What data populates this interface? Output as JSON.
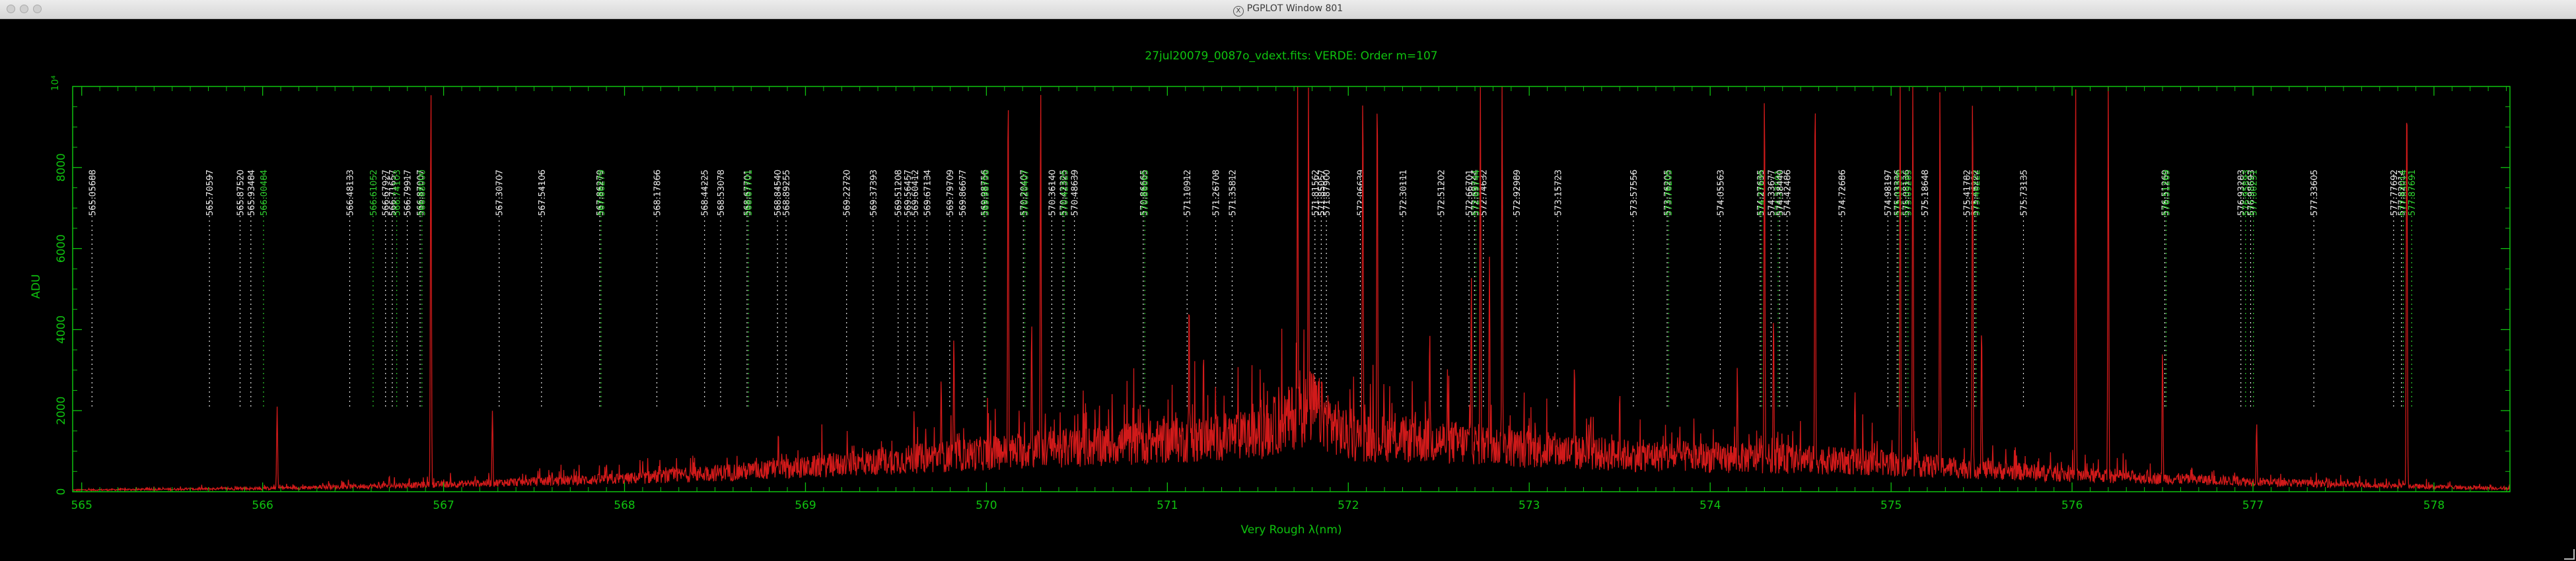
{
  "window": {
    "title": "PGPLOT Window 801",
    "title_icon": "x11-icon"
  },
  "chart_data": {
    "type": "line",
    "title": "27jul20079_0087o_vdext.fits: VERDE: Order m=107",
    "xlabel": "Very Rough λ(nm)",
    "ylabel": "ADU",
    "xlim": [
      564.95,
      578.42
    ],
    "ylim": [
      0,
      10000
    ],
    "y_multiplier_label": "10⁴",
    "x_ticks": [
      565,
      566,
      567,
      568,
      569,
      570,
      571,
      572,
      573,
      574,
      575,
      576,
      577,
      578
    ],
    "y_ticks": [
      0,
      2000,
      4000,
      6000,
      8000
    ],
    "y_tick_labels": [
      "0",
      "2000",
      "4000",
      "6000",
      "8000"
    ],
    "grid": false,
    "colors": {
      "axes": "#0fc20f",
      "spectrum": "#d11a1a",
      "line_white": "#e8e8e8",
      "line_green": "#2ecc2e"
    },
    "spectrum": {
      "continuum": [
        [
          564.95,
          40
        ],
        [
          566.0,
          80
        ],
        [
          567.0,
          180
        ],
        [
          568.0,
          320
        ],
        [
          569.0,
          600
        ],
        [
          570.0,
          950
        ],
        [
          570.5,
          1100
        ],
        [
          571.0,
          1250
        ],
        [
          571.5,
          1400
        ],
        [
          571.8,
          2100
        ],
        [
          572.0,
          1350
        ],
        [
          572.5,
          1250
        ],
        [
          573.0,
          1050
        ],
        [
          573.5,
          900
        ],
        [
          574.0,
          850
        ],
        [
          574.5,
          800
        ],
        [
          575.0,
          700
        ],
        [
          575.5,
          550
        ],
        [
          576.0,
          420
        ],
        [
          576.5,
          330
        ],
        [
          577.0,
          250
        ],
        [
          577.5,
          180
        ],
        [
          578.0,
          120
        ],
        [
          578.42,
          80
        ]
      ],
      "peaks": [
        [
          566.08,
          2100
        ],
        [
          566.7,
          400
        ],
        [
          566.93,
          10000
        ],
        [
          567.27,
          2000
        ],
        [
          567.6,
          500
        ],
        [
          567.9,
          700
        ],
        [
          568.55,
          600
        ],
        [
          568.85,
          1500
        ],
        [
          569.6,
          2000
        ],
        [
          569.75,
          2800
        ],
        [
          569.82,
          3900
        ],
        [
          570.12,
          10000
        ],
        [
          570.25,
          4200
        ],
        [
          570.3,
          10000
        ],
        [
          570.85,
          2200
        ],
        [
          571.12,
          4800
        ],
        [
          571.2,
          3500
        ],
        [
          571.72,
          10000
        ],
        [
          571.78,
          10000
        ],
        [
          572.08,
          10000
        ],
        [
          572.16,
          10000
        ],
        [
          572.45,
          4000
        ],
        [
          572.68,
          5300
        ],
        [
          572.73,
          10000
        ],
        [
          572.78,
          5800
        ],
        [
          572.85,
          10000
        ],
        [
          573.25,
          3200
        ],
        [
          573.5,
          2500
        ],
        [
          574.15,
          3100
        ],
        [
          574.3,
          10000
        ],
        [
          574.35,
          4400
        ],
        [
          574.58,
          10000
        ],
        [
          574.8,
          2500
        ],
        [
          575.05,
          10000
        ],
        [
          575.12,
          10000
        ],
        [
          575.27,
          10000
        ],
        [
          575.45,
          10000
        ],
        [
          575.5,
          4100
        ],
        [
          576.02,
          10000
        ],
        [
          576.2,
          10000
        ],
        [
          576.5,
          3500
        ],
        [
          577.02,
          1700
        ],
        [
          577.85,
          10000
        ]
      ]
    },
    "line_ids": [
      {
        "label": "565.05688",
        "x": 565.05688,
        "color": "white"
      },
      {
        "label": "565.70597",
        "x": 565.70597,
        "color": "white"
      },
      {
        "label": "565.87520",
        "x": 565.8752,
        "color": "white"
      },
      {
        "label": "565.93484",
        "x": 565.93484,
        "color": "white"
      },
      {
        "label": "566.00484",
        "x": 566.00484,
        "color": "green"
      },
      {
        "label": "566.48133",
        "x": 566.48133,
        "color": "white"
      },
      {
        "label": "566.61052",
        "x": 566.61052,
        "color": "green"
      },
      {
        "label": "566.67927",
        "x": 566.67927,
        "color": "white"
      },
      {
        "label": "566.71657",
        "x": 566.71657,
        "color": "white"
      },
      {
        "label": "566.74103",
        "x": 566.74103,
        "color": "green"
      },
      {
        "label": "566.79917",
        "x": 566.79917,
        "color": "white"
      },
      {
        "label": "566.87007",
        "x": 566.87007,
        "color": "white"
      },
      {
        "label": "566.88000",
        "x": 566.88,
        "color": "green"
      },
      {
        "label": "567.30707",
        "x": 567.30707,
        "color": "white"
      },
      {
        "label": "567.54106",
        "x": 567.54106,
        "color": "white"
      },
      {
        "label": "567.86279",
        "x": 567.86279,
        "color": "white"
      },
      {
        "label": "567.86279",
        "x": 567.87,
        "color": "green"
      },
      {
        "label": "568.17866",
        "x": 568.17866,
        "color": "white"
      },
      {
        "label": "568.44225",
        "x": 568.44225,
        "color": "white"
      },
      {
        "label": "568.53078",
        "x": 568.53078,
        "color": "white"
      },
      {
        "label": "568.67701",
        "x": 568.67701,
        "color": "white"
      },
      {
        "label": "568.67701",
        "x": 568.685,
        "color": "green"
      },
      {
        "label": "568.84540",
        "x": 568.8454,
        "color": "white"
      },
      {
        "label": "568.89255",
        "x": 568.89255,
        "color": "white"
      },
      {
        "label": "569.22720",
        "x": 569.2272,
        "color": "white"
      },
      {
        "label": "569.37393",
        "x": 569.37393,
        "color": "white"
      },
      {
        "label": "569.51208",
        "x": 569.51208,
        "color": "white"
      },
      {
        "label": "569.56457",
        "x": 569.56457,
        "color": "white"
      },
      {
        "label": "569.60412",
        "x": 569.60412,
        "color": "white"
      },
      {
        "label": "569.67134",
        "x": 569.67134,
        "color": "white"
      },
      {
        "label": "569.79709",
        "x": 569.79709,
        "color": "white"
      },
      {
        "label": "569.86677",
        "x": 569.86677,
        "color": "white"
      },
      {
        "label": "569.98756",
        "x": 569.98756,
        "color": "white"
      },
      {
        "label": "569.98756",
        "x": 569.995,
        "color": "green"
      },
      {
        "label": "570.20407",
        "x": 570.20407,
        "color": "white"
      },
      {
        "label": "570.20407",
        "x": 570.212,
        "color": "green"
      },
      {
        "label": "570.36140",
        "x": 570.3614,
        "color": "white"
      },
      {
        "label": "570.42325",
        "x": 570.42325,
        "color": "white"
      },
      {
        "label": "570.42325",
        "x": 570.431,
        "color": "green"
      },
      {
        "label": "570.48639",
        "x": 570.48639,
        "color": "white"
      },
      {
        "label": "570.86665",
        "x": 570.86665,
        "color": "white"
      },
      {
        "label": "570.86665",
        "x": 570.875,
        "color": "green"
      },
      {
        "label": "571.10912",
        "x": 571.10912,
        "color": "white"
      },
      {
        "label": "571.26708",
        "x": 571.26708,
        "color": "white"
      },
      {
        "label": "571.35812",
        "x": 571.35812,
        "color": "white"
      },
      {
        "label": "571.81562",
        "x": 571.81562,
        "color": "white"
      },
      {
        "label": "571.85057",
        "x": 571.85057,
        "color": "white"
      },
      {
        "label": "571.87900",
        "x": 571.879,
        "color": "white"
      },
      {
        "label": "572.06639",
        "x": 572.06639,
        "color": "white"
      },
      {
        "label": "572.30111",
        "x": 572.30111,
        "color": "white"
      },
      {
        "label": "572.51202",
        "x": 572.51202,
        "color": "white"
      },
      {
        "label": "572.66701",
        "x": 572.66701,
        "color": "white"
      },
      {
        "label": "572.69744",
        "x": 572.69744,
        "color": "white"
      },
      {
        "label": "572.69744",
        "x": 572.705,
        "color": "green"
      },
      {
        "label": "572.74632",
        "x": 572.74632,
        "color": "white"
      },
      {
        "label": "572.92989",
        "x": 572.92989,
        "color": "white"
      },
      {
        "label": "573.15723",
        "x": 573.15723,
        "color": "white"
      },
      {
        "label": "573.57556",
        "x": 573.57556,
        "color": "white"
      },
      {
        "label": "573.76205",
        "x": 573.76205,
        "color": "white"
      },
      {
        "label": "573.76205",
        "x": 573.77,
        "color": "green"
      },
      {
        "label": "574.05563",
        "x": 574.05563,
        "color": "white"
      },
      {
        "label": "574.27635",
        "x": 574.27635,
        "color": "white"
      },
      {
        "label": "574.27635",
        "x": 574.284,
        "color": "green"
      },
      {
        "label": "574.33677",
        "x": 574.33677,
        "color": "white"
      },
      {
        "label": "574.37591",
        "x": 574.37591,
        "color": "green"
      },
      {
        "label": "574.38440",
        "x": 574.3844,
        "color": "white"
      },
      {
        "label": "574.42486",
        "x": 574.42486,
        "color": "white"
      },
      {
        "label": "574.72686",
        "x": 574.72686,
        "color": "white"
      },
      {
        "label": "574.98197",
        "x": 574.98197,
        "color": "white"
      },
      {
        "label": "575.03336",
        "x": 575.03336,
        "color": "white"
      },
      {
        "label": "575.03336",
        "x": 575.041,
        "color": "green"
      },
      {
        "label": "575.08136",
        "x": 575.08136,
        "color": "white"
      },
      {
        "label": "575.09285",
        "x": 575.09285,
        "color": "green"
      },
      {
        "label": "575.18648",
        "x": 575.18648,
        "color": "white"
      },
      {
        "label": "575.41782",
        "x": 575.41782,
        "color": "white"
      },
      {
        "label": "575.46222",
        "x": 575.46222,
        "color": "white"
      },
      {
        "label": "575.46222",
        "x": 575.47,
        "color": "green"
      },
      {
        "label": "575.73135",
        "x": 575.73135,
        "color": "white"
      },
      {
        "label": "576.51269",
        "x": 576.51269,
        "color": "white"
      },
      {
        "label": "576.51269",
        "x": 576.52,
        "color": "green"
      },
      {
        "label": "576.93283",
        "x": 576.93283,
        "color": "white"
      },
      {
        "label": "576.95893",
        "x": 576.95893,
        "color": "green"
      },
      {
        "label": "576.98693",
        "x": 576.98693,
        "color": "white"
      },
      {
        "label": "577.00251",
        "x": 577.00251,
        "color": "green"
      },
      {
        "label": "577.33605",
        "x": 577.33605,
        "color": "white"
      },
      {
        "label": "577.77692",
        "x": 577.77692,
        "color": "white"
      },
      {
        "label": "577.82014",
        "x": 577.82014,
        "color": "white"
      },
      {
        "label": "577.83014",
        "x": 577.83014,
        "color": "green"
      },
      {
        "label": "577.87691",
        "x": 577.87691,
        "color": "green"
      }
    ]
  }
}
